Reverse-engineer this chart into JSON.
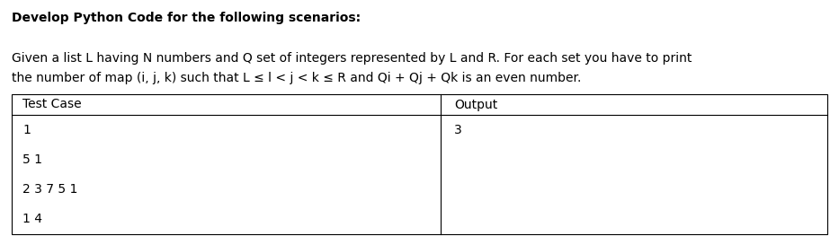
{
  "title": "Develop Python Code for the following scenarios:",
  "description_line1": "Given a list L having N numbers and Q set of integers represented by L and R. For each set you have to print",
  "description_line2": "the number of map (i, j, k) such that L ≤ l < j < k ≤ R and Qi + Qj + Qk is an even number.",
  "table_header_col1": "Test Case",
  "table_header_col2": "Output",
  "table_rows_col1": [
    "1",
    "5 1",
    "2 3 7 5 1",
    "1 4"
  ],
  "table_rows_col2": [
    "3",
    "",
    "",
    ""
  ],
  "bg_color": "#ffffff",
  "text_color": "#000000",
  "title_fontsize": 10.0,
  "body_fontsize": 10.0,
  "table_fontsize": 10.0,
  "fig_width": 9.33,
  "fig_height": 2.63,
  "dpi": 100
}
